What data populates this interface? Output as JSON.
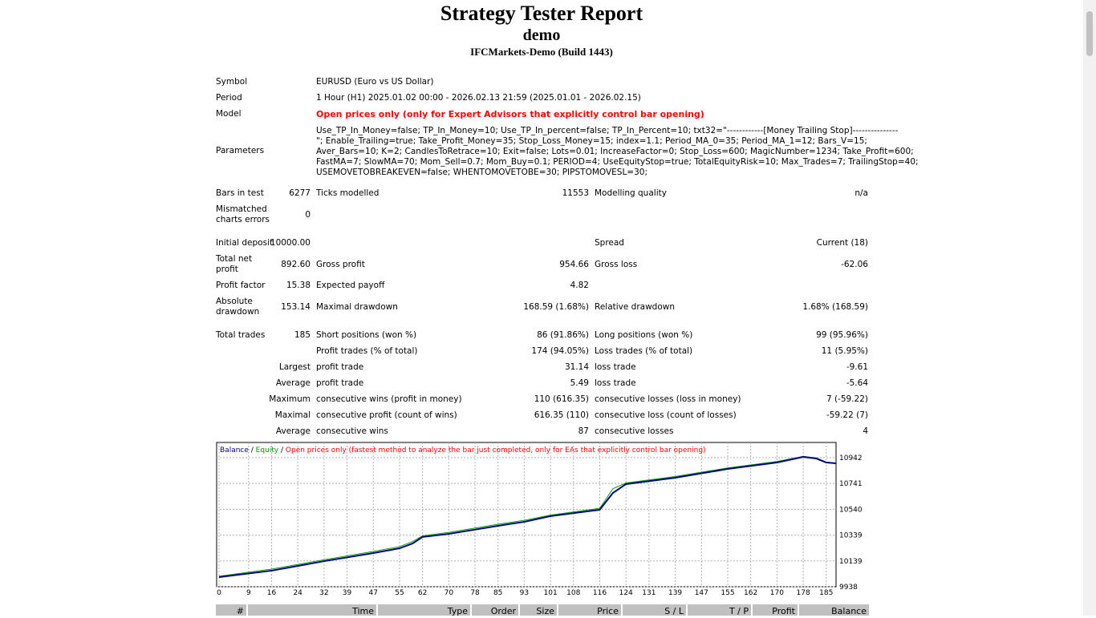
{
  "header": {
    "title": "Strategy Tester Report",
    "subtitle": "demo",
    "server": "IFCMarkets-Demo (Build 1443)"
  },
  "info": [
    {
      "label": "Symbol",
      "value": "EURUSD (Euro vs US Dollar)"
    },
    {
      "label": "Period",
      "value": "1 Hour (H1) 2025.01.02 00:00 - 2026.02.13 21:59 (2025.01.01 - 2026.02.15)"
    },
    {
      "label": "Model",
      "value": "Open prices only (only for Expert Advisors that explicitly control bar opening)"
    }
  ],
  "parameters": {
    "label": "Parameters",
    "lines": [
      "Use_TP_In_Money=false; TP_In_Money=10; Use_TP_In_percent=false; TP_In_Percent=10; txt32=\"------------[Money Trailing Stop]---------------",
      "\"; Enable_Trailing=true; Take_Profit_Money=35; Stop_Loss_Money=15; index=1.1; Period_MA_0=35; Period_MA_1=12; Bars_V=15;",
      "Aver_Bars=10; K=2; CandlesToRetrace=10; Exit=false; Lots=0.01; IncreaseFactor=0; Stop_Loss=600; MagicNumber=1234; Take_Profit=600;",
      "FastMA=7; SlowMA=70; Mom_Sell=0.7; Mom_Buy=0.1; PERIOD=4; UseEquityStop=true; TotalEquityRisk=10; Max_Trades=7; TrailingStop=40;",
      "USEMOVETOBREAKEVEN=false; WHENTOMOVETOBE=30; PIPSTOMOVESL=30;"
    ]
  },
  "stats": [
    {
      "label1": "Bars in test",
      "value1": "6277",
      "label2": "Ticks modelled",
      "value2": "11553",
      "label3": "Modelling quality",
      "value3": "n/a"
    },
    {
      "label1": "Mismatched charts errors",
      "value1": "0"
    },
    {
      "label1": "Initial deposit",
      "value1": "10000.00",
      "label3": "Spread",
      "value3": "Current (18)"
    },
    {
      "label1": "Total net profit",
      "value1": "892.60",
      "label2": "Gross profit",
      "value2": "954.66",
      "label3": "Gross loss",
      "value3": "-62.06"
    },
    {
      "label1": "Profit factor",
      "value1": "15.38",
      "label2": "Expected payoff",
      "value2": "4.82"
    },
    {
      "label1": "Absolute drawdown",
      "value1": "153.14",
      "label2": "Maximal drawdown",
      "value2": "168.59 (1.68%)",
      "label3": "Relative drawdown",
      "value3": "1.68% (168.59)"
    },
    {
      "label1": "Total trades",
      "value1": "185",
      "label2": "Short positions (won %)",
      "value2": "86 (91.86%)",
      "label3": "Long positions (won %)",
      "value3": "99 (95.96%)"
    },
    {
      "label2": "Profit trades (% of total)",
      "value2": "174 (94.05%)",
      "label3": "Loss trades (% of total)",
      "value3": "11 (5.95%)"
    },
    {
      "group": "Largest",
      "label2": "profit trade",
      "value2": "31.14",
      "label3": "loss trade",
      "value3": "-9.61"
    },
    {
      "group": "Average",
      "label2": "profit trade",
      "value2": "5.49",
      "label3": "loss trade",
      "value3": "-5.64"
    },
    {
      "group": "Maximum",
      "label2": "consecutive wins (profit in money)",
      "value2": "110 (616.35)",
      "label3": "consecutive losses (loss in money)",
      "value3": "7 (-59.22)"
    },
    {
      "group": "Maximal",
      "label2": "consecutive profit (count of wins)",
      "value2": "616.35 (110)",
      "label3": "consecutive loss (count of losses)",
      "value3": "-59.22 (7)"
    },
    {
      "group": "Average",
      "label2": "consecutive wins",
      "value2": "87",
      "label3": "consecutive losses",
      "value3": "4"
    }
  ],
  "chart_data": {
    "type": "line",
    "legend": [
      "Balance",
      " / ",
      "Equity",
      " / ",
      "Open prices only (fastest method to analyze the bar just completed, only for EAs that explicitly control bar opening)"
    ],
    "x": [
      0,
      16,
      32,
      47,
      55,
      59,
      62,
      70,
      85,
      93,
      101,
      116,
      120,
      124,
      139,
      155,
      170,
      178,
      182,
      185,
      188
    ],
    "series": [
      {
        "name": "Balance",
        "color": "#00008b",
        "values": [
          10013,
          10063,
          10137,
          10200,
          10237,
          10275,
          10325,
          10349,
          10412,
          10443,
          10487,
          10537,
          10667,
          10736,
          10786,
          10854,
          10904,
          10948,
          10935,
          10904,
          10898
        ]
      },
      {
        "name": "Equity",
        "color": "#00a000",
        "values": [
          10020,
          10075,
          10148,
          10212,
          10250,
          10290,
          10334,
          10360,
          10424,
          10455,
          10495,
          10548,
          10700,
          10745,
          10795,
          10862,
          10912,
          10952,
          10940,
          10908,
          10898
        ]
      }
    ],
    "xlim": [
      0,
      188
    ],
    "ylim": [
      9938,
      11060
    ],
    "xticks": [
      0,
      9,
      16,
      24,
      32,
      39,
      47,
      55,
      62,
      70,
      78,
      85,
      93,
      101,
      108,
      116,
      124,
      131,
      139,
      147,
      155,
      162,
      170,
      178,
      185
    ],
    "yticks": [
      9938,
      10139,
      10339,
      10540,
      10741,
      10942
    ],
    "grid": true
  },
  "table": {
    "columns": [
      "#",
      "Time",
      "Type",
      "Order",
      "Size",
      "Price",
      "S / L",
      "T / P",
      "Profit",
      "Balance"
    ]
  }
}
